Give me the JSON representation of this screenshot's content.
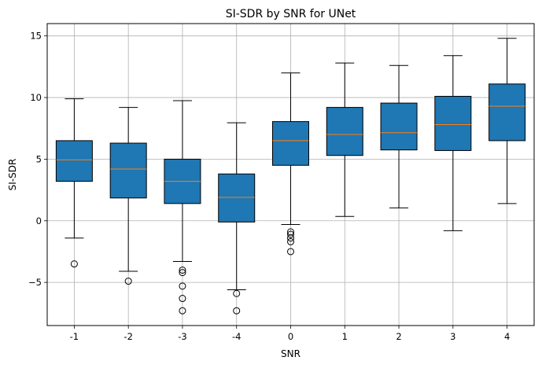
{
  "chart_data": {
    "type": "box",
    "title": "SI-SDR by SNR for UNet",
    "xlabel": "SNR",
    "ylabel": "SI-SDR",
    "categories": [
      "-1",
      "-2",
      "-3",
      "-4",
      "0",
      "1",
      "2",
      "3",
      "4"
    ],
    "yticks": [
      "−5",
      "0",
      "5",
      "10",
      "15"
    ],
    "ytick_values": [
      -5,
      0,
      5,
      10,
      15
    ],
    "ylim": [
      -8.5,
      16
    ],
    "grid": true,
    "box_color": "#1f77b4",
    "median_color": "#ff7f0e",
    "boxes": [
      {
        "whisker_low": -1.4,
        "q1": 3.2,
        "median": 4.95,
        "q3": 6.5,
        "whisker_high": 9.9,
        "outliers": [
          -3.5
        ]
      },
      {
        "whisker_low": -4.1,
        "q1": 1.85,
        "median": 4.2,
        "q3": 6.3,
        "whisker_high": 9.2,
        "outliers": [
          -4.9
        ]
      },
      {
        "whisker_low": -3.3,
        "q1": 1.4,
        "median": 3.2,
        "q3": 5.0,
        "whisker_high": 9.75,
        "outliers": [
          -4.0,
          -4.2,
          -5.3,
          -6.3,
          -7.3
        ]
      },
      {
        "whisker_low": -5.6,
        "q1": -0.1,
        "median": 1.9,
        "q3": 3.8,
        "whisker_high": 7.95,
        "outliers": [
          -5.9,
          -7.3
        ]
      },
      {
        "whisker_low": -0.3,
        "q1": 4.5,
        "median": 6.5,
        "q3": 8.05,
        "whisker_high": 12.0,
        "outliers": [
          -0.9,
          -1.1,
          -1.4,
          -1.7,
          -2.5
        ]
      },
      {
        "whisker_low": 0.35,
        "q1": 5.3,
        "median": 7.0,
        "q3": 9.2,
        "whisker_high": 12.8,
        "outliers": []
      },
      {
        "whisker_low": 1.05,
        "q1": 5.75,
        "median": 7.15,
        "q3": 9.55,
        "whisker_high": 12.6,
        "outliers": []
      },
      {
        "whisker_low": -0.8,
        "q1": 5.7,
        "median": 7.8,
        "q3": 10.1,
        "whisker_high": 13.4,
        "outliers": []
      },
      {
        "whisker_low": 1.4,
        "q1": 6.5,
        "median": 9.3,
        "q3": 11.1,
        "whisker_high": 14.8,
        "outliers": []
      }
    ]
  }
}
